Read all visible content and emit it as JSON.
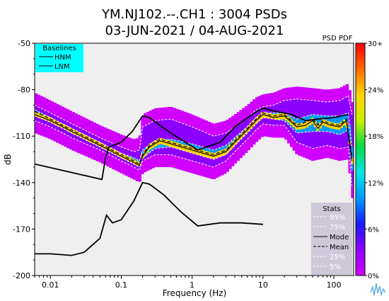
{
  "chart_data": {
    "type": "heatmap",
    "title_line1": "YM.NJ102.--.CH1 : 3004 PSDs",
    "title_line2": "03-JUN-2021 / 04-AUG-2021",
    "xlabel": "Frequency (Hz)",
    "ylabel": "dB",
    "xscale": "log",
    "xlim": [
      0.006,
      190
    ],
    "ylim": [
      -200,
      -50
    ],
    "x_ticks": [
      {
        "value": 0.01,
        "label": "0.01"
      },
      {
        "value": 0.1,
        "label": "0.1"
      },
      {
        "value": 1,
        "label": "1"
      },
      {
        "value": 10,
        "label": "10"
      },
      {
        "value": 100,
        "label": "100"
      }
    ],
    "y_ticks": [
      {
        "value": -50,
        "label": "-50"
      },
      {
        "value": -80,
        "label": "-80"
      },
      {
        "value": -110,
        "label": "-110"
      },
      {
        "value": -140,
        "label": "-140"
      },
      {
        "value": -170,
        "label": "-170"
      },
      {
        "value": -200,
        "label": "-200"
      }
    ],
    "colorbar": {
      "title": "PSD PDF",
      "ticks": [
        "30+",
        "24%",
        "18%",
        "12%",
        "6%",
        "0%"
      ],
      "colors": [
        "#d000ff",
        "#8c00ff",
        "#1a1aff",
        "#0099ff",
        "#00e5e5",
        "#00dd44",
        "#c8f000",
        "#ffd400",
        "#ff6a00",
        "#ff0000"
      ]
    },
    "baselines_legend": {
      "title": "Baselines",
      "entries": [
        "HNM",
        "LNM"
      ],
      "background": "#00ffff"
    },
    "stats_legend": {
      "title": "Stats",
      "entries": [
        "95%",
        "75%",
        "Mode",
        "Mean",
        "25%",
        "5%"
      ],
      "background": "#cfc8d8"
    },
    "series": [
      {
        "name": "HNM",
        "x": [
          0.006,
          0.0533,
          0.06,
          0.067,
          0.1,
          0.143,
          0.2,
          0.25,
          0.35,
          0.5,
          1.2,
          2.5,
          4,
          7,
          10,
          15,
          25,
          40,
          60,
          100,
          160
        ],
        "y": [
          -128,
          -138,
          -124,
          -117,
          -114,
          -107,
          -97,
          -98,
          -103,
          -108,
          -119,
          -114,
          -104,
          -96,
          -92,
          -94,
          -96,
          -100,
          -99,
          -98,
          -96
        ]
      },
      {
        "name": "LNM",
        "x": [
          0.006,
          0.01,
          0.02,
          0.03,
          0.05,
          0.062,
          0.075,
          0.1,
          0.15,
          0.2,
          0.25,
          0.4,
          0.7,
          1.2,
          2.5,
          5,
          10
        ],
        "y": [
          -186,
          -186,
          -187,
          -185,
          -176,
          -161,
          -166,
          -164,
          -152,
          -140,
          -141,
          -148,
          -159,
          -168,
          -166,
          -166,
          -167
        ]
      },
      {
        "name": "Mode",
        "x": [
          0.006,
          0.01,
          0.02,
          0.05,
          0.1,
          0.15,
          0.18,
          0.2,
          0.25,
          0.35,
          0.5,
          1,
          2,
          3,
          4,
          6,
          8,
          10,
          14,
          20,
          30,
          40,
          50,
          60,
          70,
          90,
          120,
          150,
          180
        ],
        "y": [
          -96,
          -100,
          -107,
          -116,
          -123,
          -127,
          -129,
          -123,
          -117,
          -113,
          -115,
          -119,
          -123,
          -120,
          -114,
          -106,
          -100,
          -96,
          -98,
          -97,
          -104,
          -103,
          -100,
          -105,
          -101,
          -103,
          -104,
          -100,
          -126
        ]
      },
      {
        "name": "Mean",
        "x": [
          0.006,
          0.01,
          0.02,
          0.05,
          0.1,
          0.15,
          0.18,
          0.2,
          0.25,
          0.35,
          0.5,
          1,
          2,
          3,
          4,
          6,
          8,
          10,
          14,
          20,
          30,
          40,
          50,
          60,
          70,
          90,
          120,
          150,
          180
        ],
        "y": [
          -94,
          -99,
          -106,
          -115,
          -122,
          -126,
          -128,
          -122,
          -116,
          -112,
          -114,
          -118,
          -122,
          -119,
          -113,
          -105,
          -99,
          -95,
          -97,
          -96,
          -103,
          -101,
          -99,
          -103,
          -100,
          -102,
          -103,
          -99,
          -123
        ]
      },
      {
        "name": "5%",
        "x": [
          0.006,
          0.01,
          0.02,
          0.05,
          0.1,
          0.15,
          0.18,
          0.2,
          0.3,
          0.5,
          1,
          2,
          3,
          4,
          6,
          8,
          10,
          14,
          20,
          30,
          50,
          80,
          120,
          160,
          180
        ],
        "y": [
          -100,
          -104,
          -111,
          -119,
          -126,
          -130,
          -132,
          -126,
          -122,
          -122,
          -126,
          -130,
          -126,
          -120,
          -112,
          -106,
          -102,
          -103,
          -103,
          -114,
          -118,
          -116,
          -118,
          -117,
          -142
        ]
      },
      {
        "name": "25%",
        "x": [
          0.006,
          0.01,
          0.02,
          0.05,
          0.1,
          0.15,
          0.18,
          0.2,
          0.3,
          0.5,
          1,
          2,
          3,
          4,
          6,
          8,
          10,
          14,
          20,
          30,
          50,
          80,
          120,
          160,
          180
        ],
        "y": [
          -97,
          -101,
          -108,
          -117,
          -124,
          -128,
          -130,
          -124,
          -118,
          -117,
          -121,
          -125,
          -122,
          -116,
          -108,
          -102,
          -98,
          -99,
          -100,
          -108,
          -107,
          -107,
          -109,
          -106,
          -132
        ]
      },
      {
        "name": "75%",
        "x": [
          0.006,
          0.01,
          0.02,
          0.05,
          0.1,
          0.15,
          0.18,
          0.2,
          0.3,
          0.5,
          1,
          2,
          3,
          4,
          6,
          8,
          10,
          14,
          20,
          30,
          50,
          80,
          120,
          160,
          180
        ],
        "y": [
          -93,
          -98,
          -105,
          -114,
          -121,
          -124,
          -126,
          -119,
          -113,
          -112,
          -115,
          -119,
          -116,
          -111,
          -104,
          -98,
          -95,
          -95,
          -95,
          -99,
          -96,
          -97,
          -97,
          -95,
          -117
        ]
      },
      {
        "name": "95%",
        "x": [
          0.006,
          0.01,
          0.02,
          0.05,
          0.1,
          0.15,
          0.18,
          0.2,
          0.3,
          0.5,
          1,
          2,
          3,
          4,
          6,
          8,
          10,
          14,
          20,
          30,
          50,
          80,
          120,
          160,
          180
        ],
        "y": [
          -90,
          -95,
          -102,
          -111,
          -117,
          -120,
          -119,
          -104,
          -100,
          -99,
          -104,
          -110,
          -108,
          -104,
          -98,
          -93,
          -91,
          -90,
          -87,
          -86,
          -87,
          -88,
          -87,
          -84,
          -96
        ]
      }
    ]
  }
}
